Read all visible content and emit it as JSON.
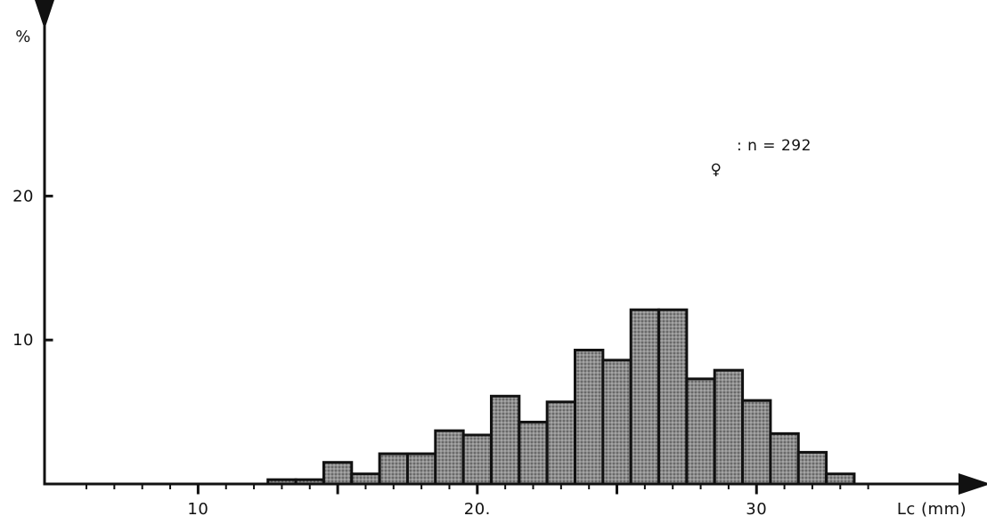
{
  "chart_data": {
    "type": "bar",
    "x_unit_label": "Lc (mm)",
    "y_unit_label": "%",
    "legend": {
      "symbol": "♀",
      "label": ": n = 292",
      "placement": "top-right"
    },
    "x_ticks": [
      {
        "value": 10,
        "label": "10"
      },
      {
        "value": 20,
        "label": "20."
      },
      {
        "value": 30,
        "label": "30"
      }
    ],
    "y_ticks": [
      {
        "value": 10,
        "label": "10"
      },
      {
        "value": 20,
        "label": "20"
      }
    ],
    "xlim": [
      4.5,
      38
    ],
    "ylim": [
      0,
      33
    ],
    "bin_edges": [
      12.5,
      13.5,
      14.5,
      15.5,
      16.5,
      17.5,
      18.5,
      19.5,
      20.5,
      21.5,
      22.5,
      23.5,
      24.5,
      25.5,
      26.5,
      27.5,
      28.5,
      29.5,
      30.5,
      31.5,
      32.5,
      33.5
    ],
    "values": [
      0.3,
      0.3,
      1.5,
      0.7,
      2.1,
      2.1,
      3.7,
      3.4,
      6.1,
      4.3,
      5.7,
      9.3,
      8.6,
      12.1,
      12.1,
      7.3,
      7.9,
      5.8,
      3.5,
      2.2,
      0.7
    ],
    "fill_color": "#777777",
    "stroke_color": "#111111",
    "grid": false
  }
}
